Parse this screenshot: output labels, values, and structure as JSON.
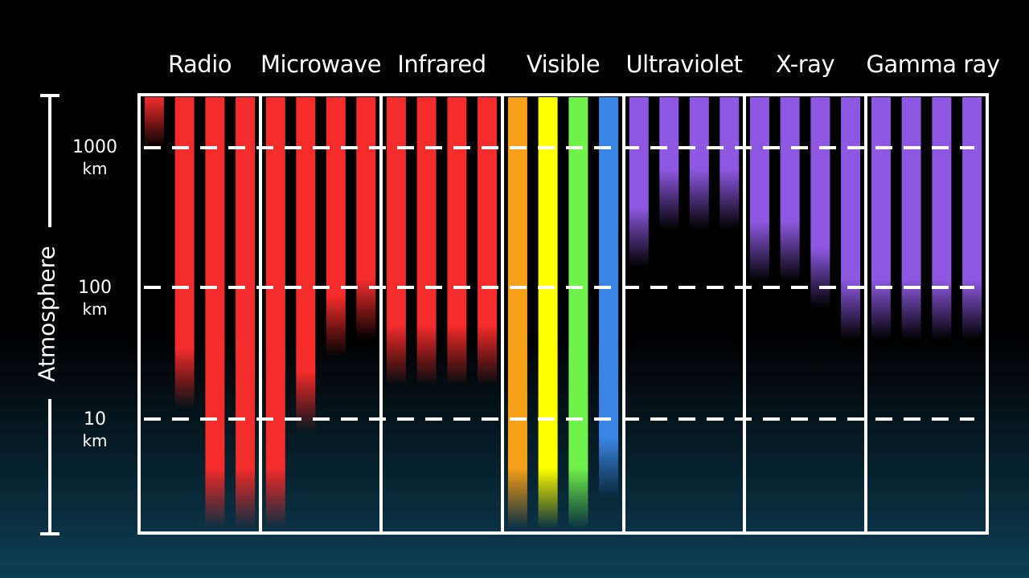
{
  "axis": {
    "title": "Atmosphere",
    "ticks": [
      {
        "value": "1000",
        "unit": "km"
      },
      {
        "value": "100",
        "unit": "km"
      },
      {
        "value": "10",
        "unit": "km"
      }
    ]
  },
  "bands": [
    {
      "label": "Radio",
      "color": "#f42c2c",
      "bar_bottoms_km": [
        1000,
        12,
        1.2,
        1.2
      ]
    },
    {
      "label": "Microwave",
      "color": "#f42c2c",
      "bar_bottoms_km": [
        1.2,
        8,
        30,
        40
      ]
    },
    {
      "label": "Infrared",
      "color": "#f42c2c",
      "bar_bottoms_km": [
        18,
        18,
        18,
        18
      ]
    },
    {
      "label": "Visible",
      "color": "#f7a11a",
      "bars": [
        {
          "color": "#f7a11a",
          "bottom_km": 1.2
        },
        {
          "color": "#ffff00",
          "bottom_km": 1.2
        },
        {
          "color": "#6ff24a",
          "bottom_km": 1.2
        },
        {
          "color": "#3a86e6",
          "bottom_km": 2.5
        }
      ]
    },
    {
      "label": "Ultraviolet",
      "color": "#8e58e2",
      "bar_bottoms_km": [
        140,
        260,
        260,
        260
      ]
    },
    {
      "label": "X-ray",
      "color": "#8e58e2",
      "bar_bottoms_km": [
        110,
        110,
        70,
        40
      ]
    },
    {
      "label": "Gamma ray",
      "color": "#8e58e2",
      "bar_bottoms_km": [
        40,
        40,
        40,
        40
      ]
    }
  ]
}
